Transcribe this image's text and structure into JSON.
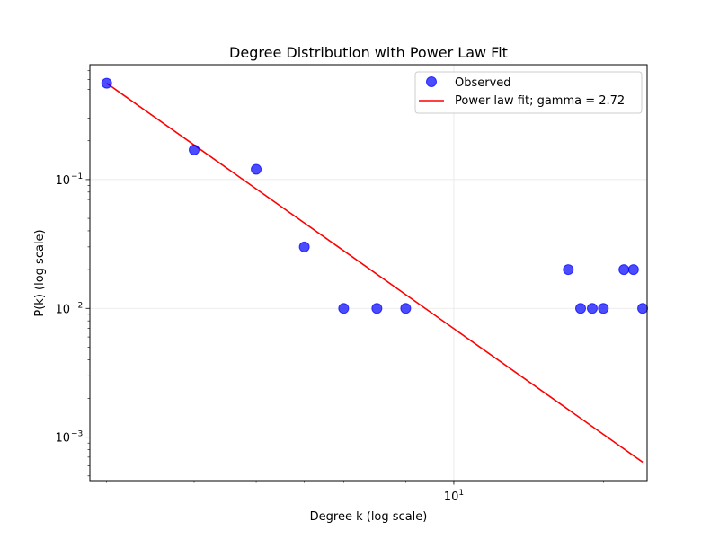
{
  "chart_data": {
    "type": "scatter",
    "title": "Degree Distribution with Power Law Fit",
    "xlabel": "Degree k (log scale)",
    "ylabel": "P(k) (log scale)",
    "xscale": "log",
    "yscale": "log",
    "xlim": [
      1.85,
      24.5
    ],
    "ylim": [
      0.00046,
      0.78
    ],
    "grid": true,
    "legend_position": "top-right",
    "x_major_ticks": [
      {
        "value": 10,
        "base": "10",
        "exp": "1"
      }
    ],
    "y_major_ticks": [
      {
        "value": 0.001,
        "base": "10",
        "exp": "−3"
      },
      {
        "value": 0.01,
        "base": "10",
        "exp": "−2"
      },
      {
        "value": 0.1,
        "base": "10",
        "exp": "−1"
      }
    ],
    "series": [
      {
        "name": "Observed",
        "kind": "scatter",
        "color": "#0000ff",
        "x": [
          2,
          3,
          4,
          5,
          6,
          7,
          8,
          17,
          18,
          19,
          20,
          22,
          23,
          24
        ],
        "y": [
          0.56,
          0.17,
          0.12,
          0.03,
          0.01,
          0.01,
          0.01,
          0.02,
          0.01,
          0.01,
          0.01,
          0.02,
          0.02,
          0.01
        ]
      },
      {
        "name": "Power law fit; gamma = 2.72",
        "kind": "line",
        "color": "#ff0000",
        "x": [
          2,
          24
        ],
        "y": [
          0.56,
          0.00064
        ]
      }
    ]
  }
}
